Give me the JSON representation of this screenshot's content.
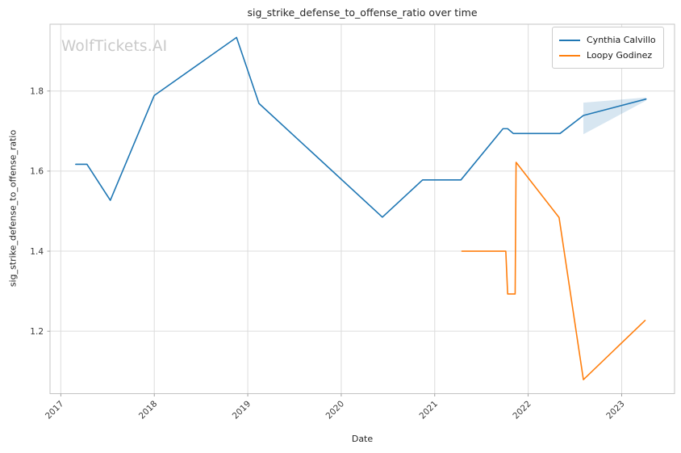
{
  "watermark": "WolfTickets.AI",
  "chart_data": {
    "type": "line",
    "title": "sig_strike_defense_to_offense_ratio over time",
    "xlabel": "Date",
    "ylabel": "sig_strike_defense_to_offense_ratio",
    "xlim": [
      2016.885,
      2023.565
    ],
    "ylim": [
      1.044,
      1.967
    ],
    "x_ticks": [
      2017,
      2018,
      2019,
      2020,
      2021,
      2022,
      2023
    ],
    "y_ticks": [
      1.2,
      1.4,
      1.6,
      1.8
    ],
    "grid": true,
    "legend_position": "upper right",
    "series": [
      {
        "name": "Cynthia Calvillo",
        "color": "#1f77b4",
        "x": [
          2017.16,
          2017.28,
          2017.53,
          2018.0,
          2018.88,
          2019.12,
          2020.44,
          2020.87,
          2021.28,
          2021.73,
          2021.78,
          2021.84,
          2022.34,
          2022.59,
          2023.26
        ],
        "y": [
          1.617,
          1.617,
          1.527,
          1.789,
          1.934,
          1.769,
          1.485,
          1.578,
          1.578,
          1.706,
          1.706,
          1.694,
          1.694,
          1.739,
          1.78
        ]
      },
      {
        "name": "Loopy Godinez",
        "color": "#ff7f0e",
        "x": [
          2021.29,
          2021.76,
          2021.78,
          2021.86,
          2021.87,
          2022.33,
          2022.59,
          2023.25
        ],
        "y": [
          1.4,
          1.4,
          1.293,
          1.293,
          1.622,
          1.484,
          1.079,
          1.227
        ]
      }
    ],
    "confidence_band": {
      "series": "Cynthia Calvillo",
      "color": "#1f77b4",
      "opacity": 0.18,
      "x": [
        2022.59,
        2023.26
      ],
      "upper": [
        1.771,
        1.784
      ],
      "lower": [
        1.692,
        1.776
      ]
    },
    "theme": {
      "grid_color": "#dcdcdc",
      "spine_color": "#c4c4c4",
      "tick_color": "#8c8c8c",
      "tick_label_color": "#3a3a3a",
      "background": "#ffffff"
    }
  }
}
